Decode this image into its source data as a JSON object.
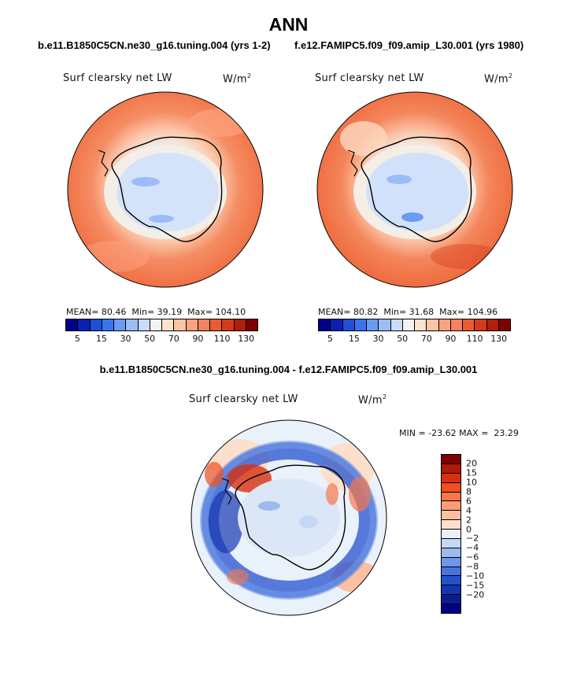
{
  "title": "ANN",
  "case_left": "b.e11.B1850C5CN.ne30_g16.tuning.004 (yrs 1-2)",
  "case_right": "f.e12.FAMIPC5.f09_f09.amip_L30.001 (yrs 1980)",
  "diff_title": "b.e11.B1850C5CN.ne30_g16.tuning.004 - f.e12.FAMIPC5.f09_f09.amip_L30.001",
  "variable_label": "Surf clearsky net LW",
  "units_base": "W/m",
  "units_exp": "2",
  "left_stats": {
    "mean_label": "MEAN=",
    "mean": "80.46",
    "min_label": "Min=",
    "min": "39.19",
    "max_label": "Max=",
    "max": "104.10"
  },
  "right_stats": {
    "mean_label": "MEAN=",
    "mean": "80.82",
    "min_label": "Min=",
    "min": "31.68",
    "max_label": "Max=",
    "max": "104.96"
  },
  "diff_stats": {
    "min_label": "MIN =",
    "min": "-23.62",
    "max_label": "MAX =",
    "max": "23.29"
  },
  "abs_colorbar": {
    "colors": [
      "#00008b",
      "#0a1fb4",
      "#1e4fd9",
      "#3a74ec",
      "#6a9af2",
      "#9bbcf6",
      "#c8dcfa",
      "#f3f3ef",
      "#fde2cc",
      "#fcc4a3",
      "#fca27f",
      "#f7805e",
      "#ec5a34",
      "#d73a18",
      "#b31e08",
      "#800000"
    ],
    "ticks": [
      "5",
      "15",
      "30",
      "50",
      "70",
      "90",
      "110",
      "130"
    ]
  },
  "diff_colorbar": {
    "colors": [
      "#800000",
      "#b01a06",
      "#d8300f",
      "#f04e1e",
      "#f7774a",
      "#fa9d76",
      "#fcc0a0",
      "#fde0cb",
      "#e8f0fa",
      "#c4d7f4",
      "#9bbbef",
      "#6e97e8",
      "#4573e0",
      "#2551cf",
      "#1536b0",
      "#081e90",
      "#00008b"
    ],
    "ticks": [
      "20",
      "15",
      "10",
      "8",
      "6",
      "4",
      "2",
      "0",
      "−2",
      "−4",
      "−6",
      "−8",
      "−10",
      "−15",
      "−20"
    ]
  }
}
